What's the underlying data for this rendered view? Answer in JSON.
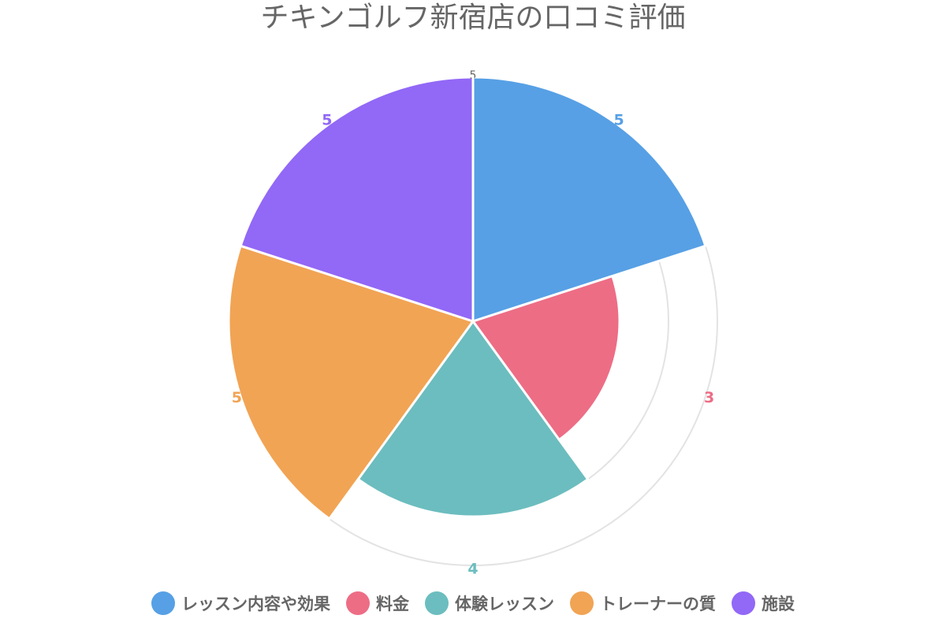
{
  "chart_data": {
    "type": "polarArea",
    "title": "チキンゴルフ新宿店の口コミ評価",
    "categories": [
      "レッスン内容や効果",
      "料金",
      "体験レッスン",
      "トレーナーの質",
      "施設"
    ],
    "values": [
      5,
      3,
      4,
      5,
      5
    ],
    "colors": [
      "#57a0e5",
      "#ed6d85",
      "#6cbdbf",
      "#f1a454",
      "#9268f6"
    ],
    "r_max": 5,
    "r_min": 0,
    "grid_rings": [
      4,
      5
    ],
    "visible_tick_labels": [
      "5"
    ],
    "legend_position": "bottom",
    "grid": true
  }
}
